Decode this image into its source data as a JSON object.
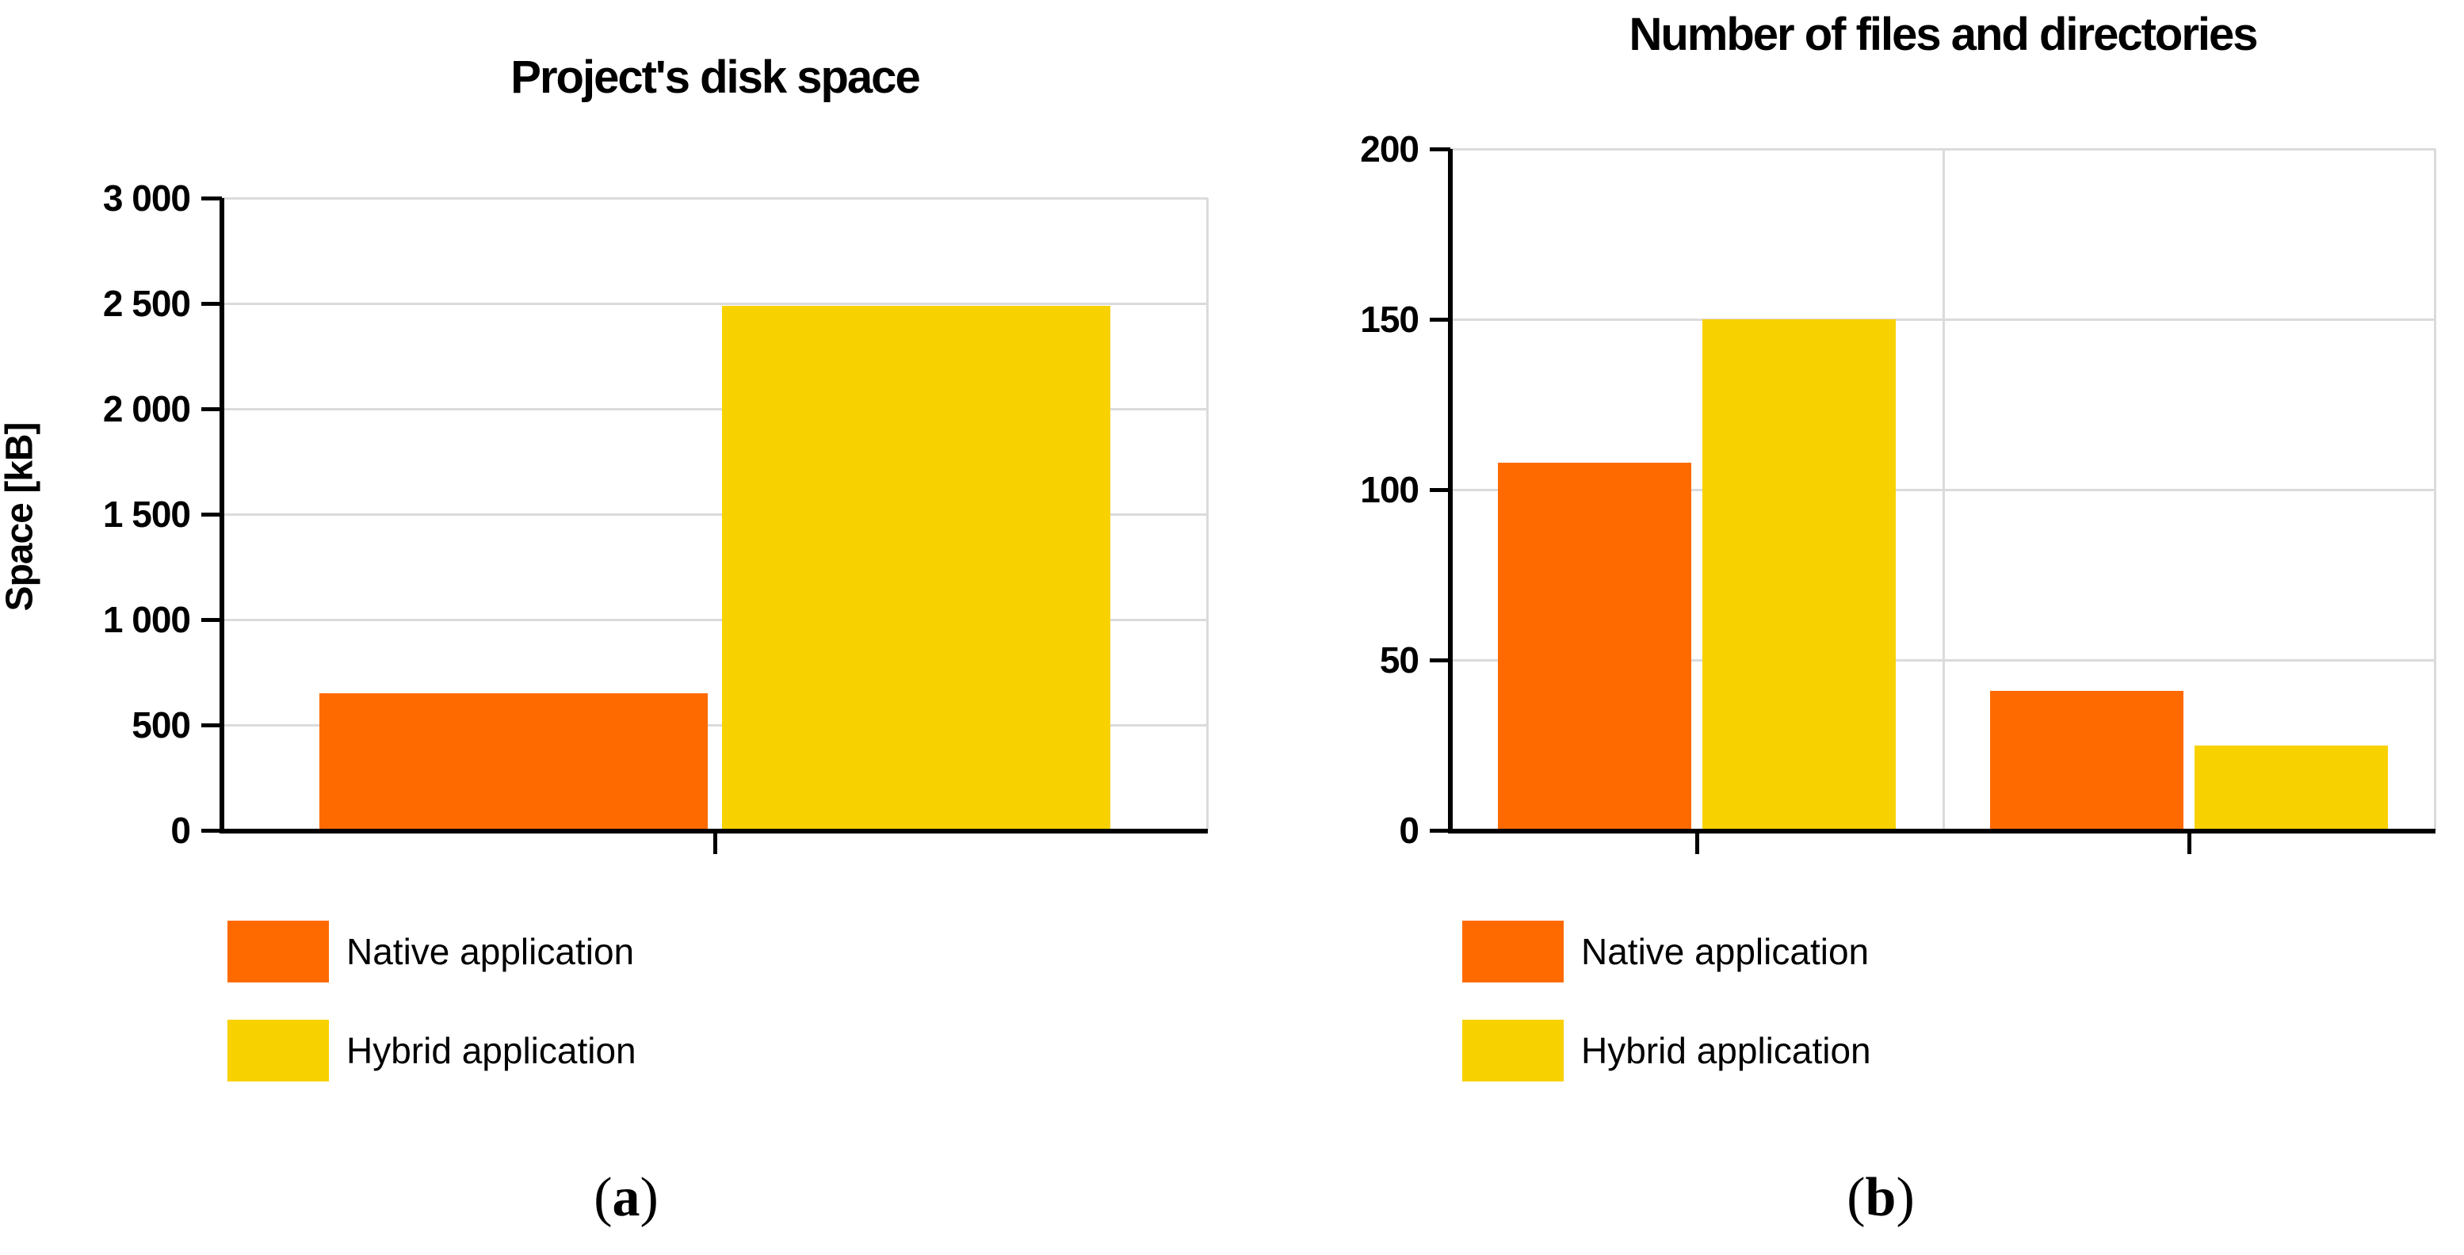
{
  "colors": {
    "native": "#FF6A00",
    "hybrid": "#F8D100",
    "gridline": "#DBDBDB",
    "axis": "#000000",
    "text": "#000000"
  },
  "legend": {
    "items": [
      {
        "label": "Native application",
        "color_key": "native"
      },
      {
        "label": "Hybrid application",
        "color_key": "hybrid"
      }
    ]
  },
  "captions": {
    "a": {
      "open": "(",
      "letter": "a",
      "close": ")"
    },
    "b": {
      "open": "(",
      "letter": "b",
      "close": ")"
    }
  },
  "chart_data": [
    {
      "type": "bar",
      "title": "Project's disk space",
      "xlabel": "",
      "ylabel": "Space [kB]",
      "ylim": [
        0,
        3000
      ],
      "ytick_step": 500,
      "ytick_labels": [
        "0",
        "500",
        "1 000",
        "1 500",
        "2 000",
        "2 500",
        "3 000"
      ],
      "grid": true,
      "legend_position": "bottom-left",
      "categories": [
        ""
      ],
      "series": [
        {
          "name": "Native application",
          "color_key": "native",
          "values": [
            650
          ]
        },
        {
          "name": "Hybrid application",
          "color_key": "hybrid",
          "values": [
            2490
          ]
        }
      ]
    },
    {
      "type": "bar",
      "title": "Number of files and directories",
      "xlabel": "",
      "ylabel": "",
      "ylim": [
        0,
        200
      ],
      "ytick_step": 50,
      "ytick_labels": [
        "0",
        "50",
        "100",
        "150",
        "200"
      ],
      "grid": true,
      "legend_position": "bottom-left",
      "categories": [
        "",
        ""
      ],
      "series": [
        {
          "name": "Native application",
          "color_key": "native",
          "values": [
            108,
            41
          ]
        },
        {
          "name": "Hybrid application",
          "color_key": "hybrid",
          "values": [
            150,
            25
          ]
        }
      ]
    }
  ]
}
